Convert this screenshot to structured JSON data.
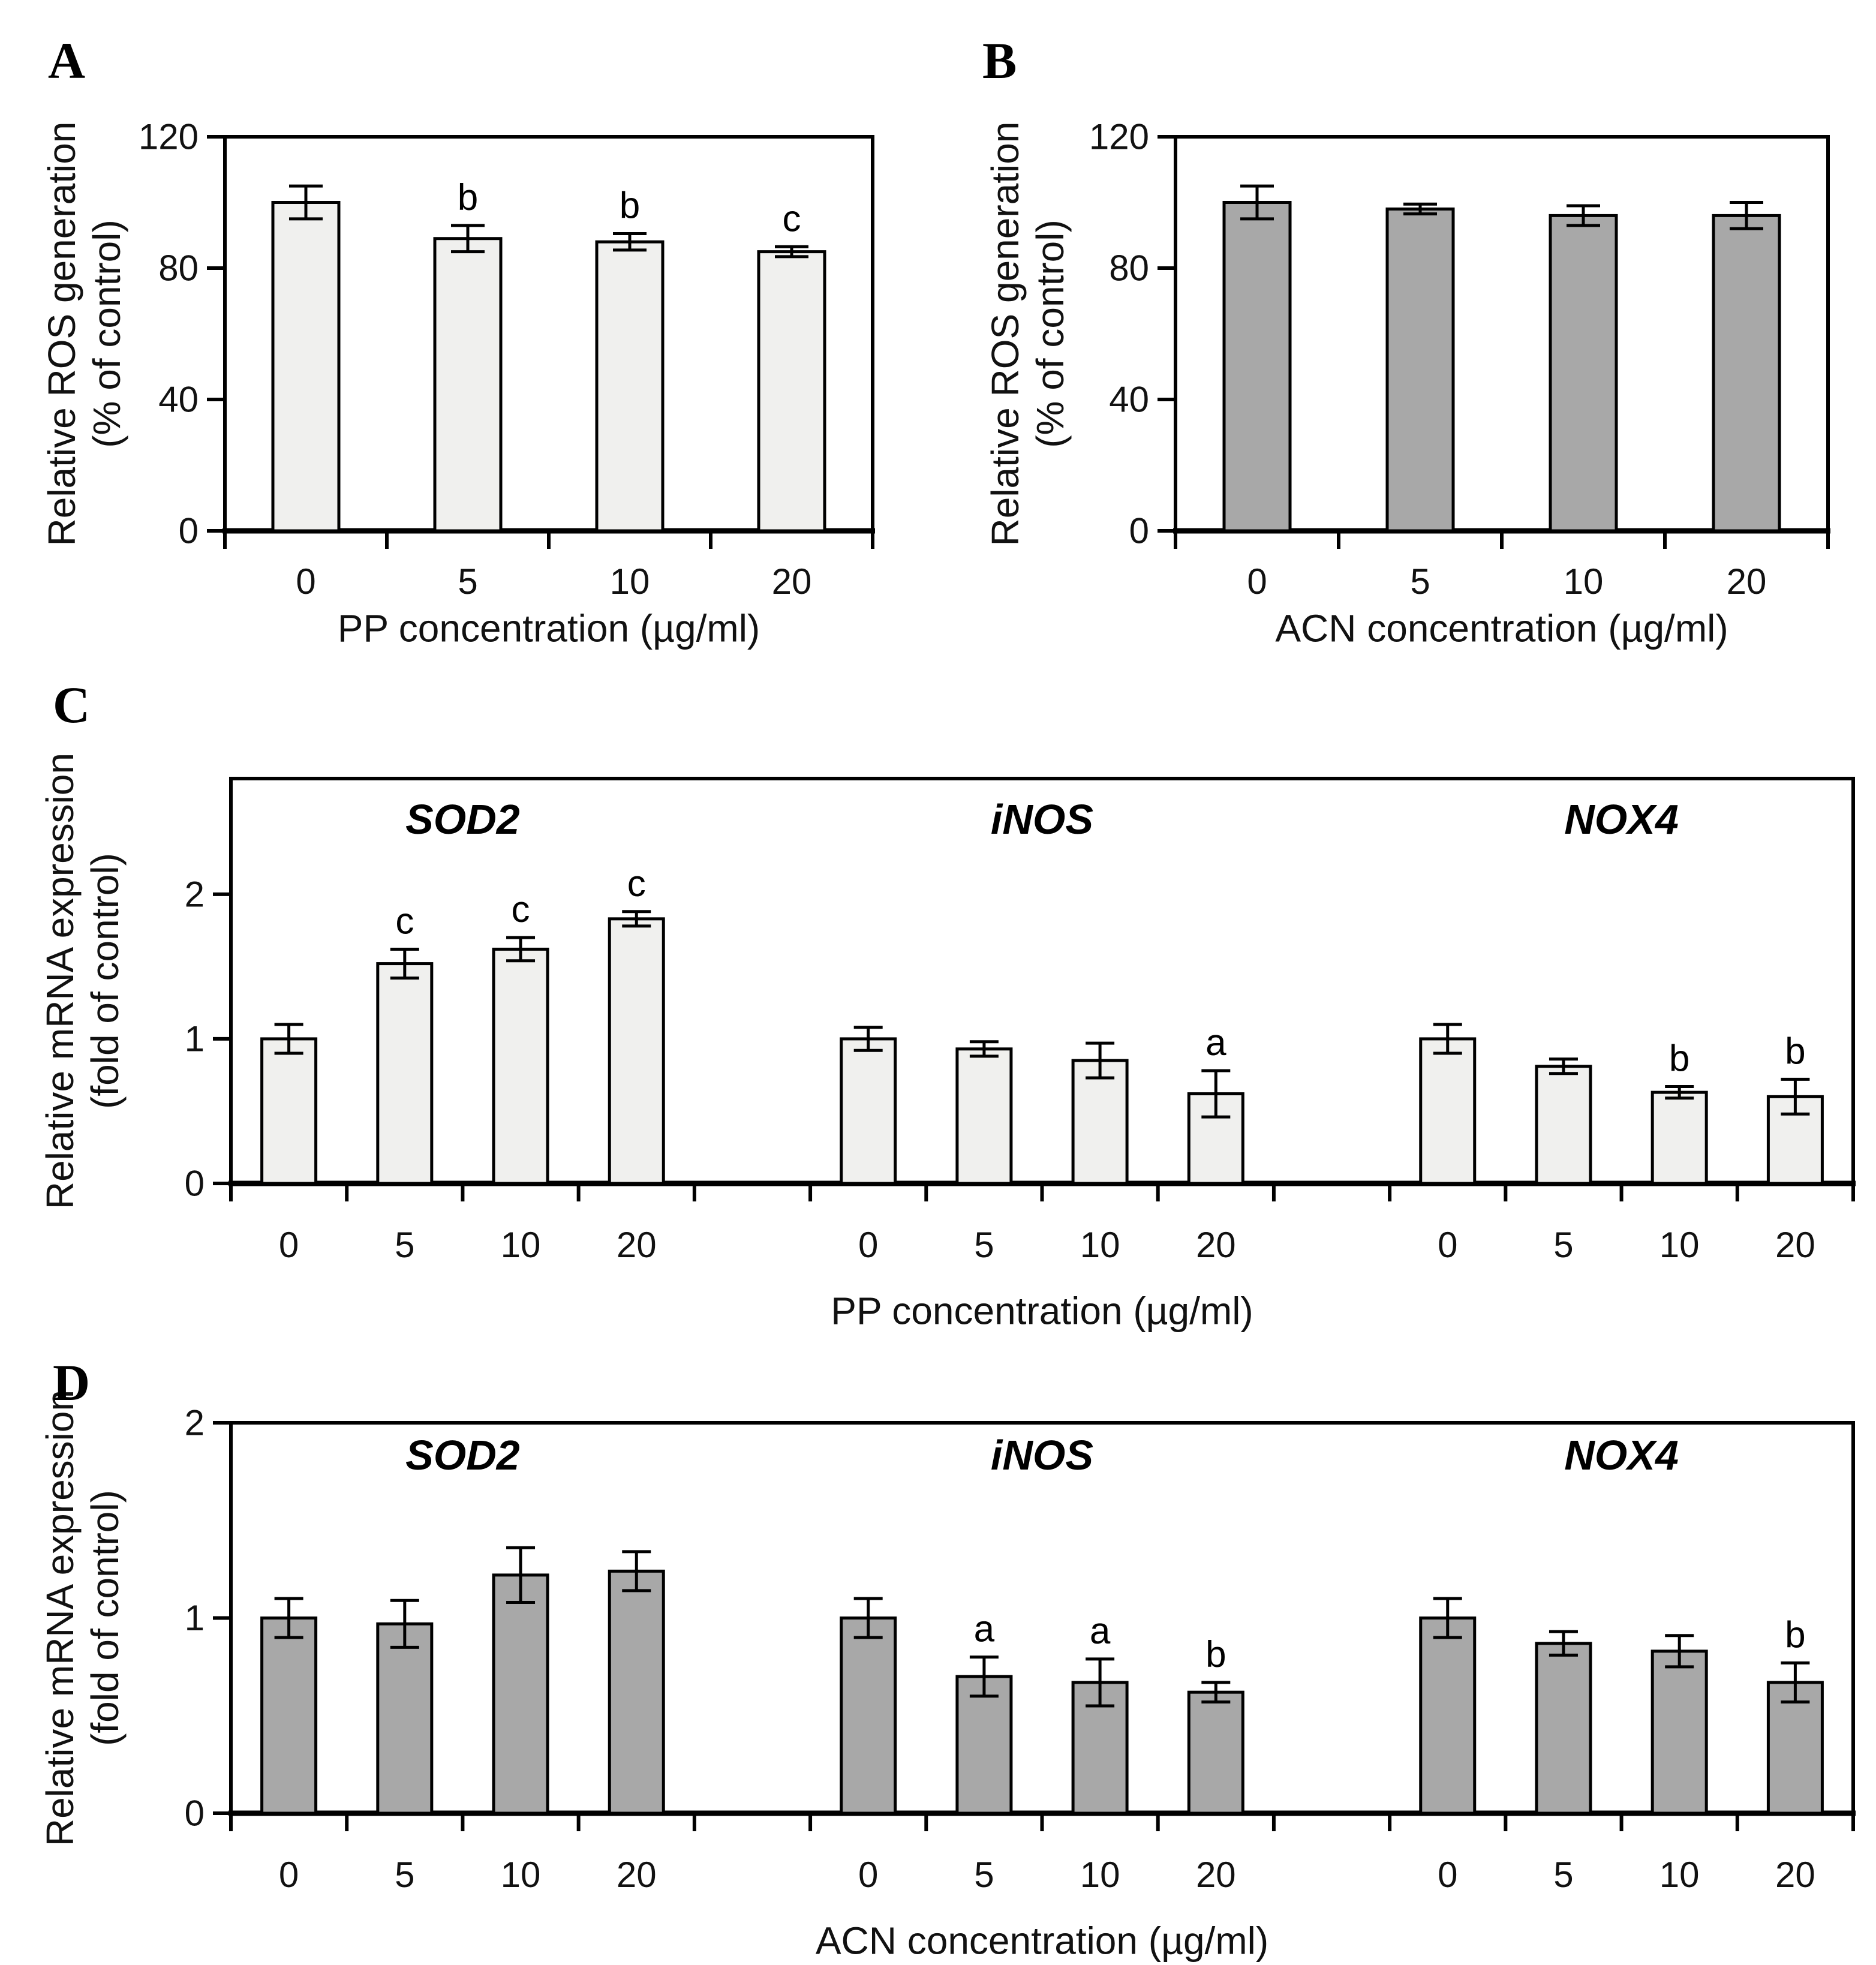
{
  "colors": {
    "light_bar": "#f0f0ee",
    "dark_bar": "#a8a8a8",
    "axis": "#000000",
    "text": "#111111"
  },
  "chart_data": [
    {
      "type": "bar",
      "panel_letter": "A",
      "title": "",
      "categories": [
        "0",
        "5",
        "10",
        "20"
      ],
      "values": [
        100,
        89,
        88,
        85
      ],
      "errors": [
        5,
        4,
        2.5,
        1.5
      ],
      "sig_letters": [
        "",
        "b",
        "b",
        "c"
      ],
      "xlabel": "PP concentration (µg/ml)",
      "ylabel_line1": "Relative ROS generation",
      "ylabel_line2": "(% of control)",
      "yticks": [
        0,
        40,
        80,
        120
      ],
      "ylim": [
        0,
        120
      ],
      "bar_style": "light",
      "grid": false,
      "legend": "none"
    },
    {
      "type": "bar",
      "panel_letter": "B",
      "title": "",
      "categories": [
        "0",
        "5",
        "10",
        "20"
      ],
      "values": [
        100,
        98,
        96,
        96
      ],
      "errors": [
        5,
        1.5,
        3,
        4
      ],
      "sig_letters": [
        "",
        "",
        "",
        ""
      ],
      "xlabel": "ACN concentration (µg/ml)",
      "ylabel_line1": "Relative ROS generation",
      "ylabel_line2": "(% of control)",
      "yticks": [
        0,
        40,
        80,
        120
      ],
      "ylim": [
        0,
        120
      ],
      "bar_style": "dark",
      "grid": false,
      "legend": "none"
    },
    {
      "type": "grouped-bar",
      "panel_letter": "C",
      "title": "",
      "categories": [
        "0",
        "5",
        "10",
        "20"
      ],
      "groups": [
        {
          "name": "SOD2",
          "values": [
            1.0,
            1.52,
            1.62,
            1.83
          ],
          "errors": [
            0.1,
            0.1,
            0.08,
            0.05
          ],
          "sig_letters": [
            "",
            "c",
            "c",
            "c"
          ]
        },
        {
          "name": "iNOS",
          "values": [
            1.0,
            0.93,
            0.85,
            0.62
          ],
          "errors": [
            0.08,
            0.05,
            0.12,
            0.16
          ],
          "sig_letters": [
            "",
            "",
            "",
            "a"
          ]
        },
        {
          "name": "NOX4",
          "values": [
            1.0,
            0.81,
            0.63,
            0.6
          ],
          "errors": [
            0.1,
            0.05,
            0.04,
            0.12
          ],
          "sig_letters": [
            "",
            "",
            "b",
            "b"
          ]
        }
      ],
      "xlabel": "PP concentration (µg/ml)",
      "ylabel_line1": "Relative mRNA expression",
      "ylabel_line2": "(fold of control)",
      "yticks": [
        0,
        1,
        2
      ],
      "ylim": [
        0,
        2.8
      ],
      "bar_style": "light",
      "grid": false,
      "legend": "none"
    },
    {
      "type": "grouped-bar",
      "panel_letter": "D",
      "title": "",
      "categories": [
        "0",
        "5",
        "10",
        "20"
      ],
      "groups": [
        {
          "name": "SOD2",
          "values": [
            1.0,
            0.97,
            1.22,
            1.24
          ],
          "errors": [
            0.1,
            0.12,
            0.14,
            0.1
          ],
          "sig_letters": [
            "",
            "",
            "",
            ""
          ]
        },
        {
          "name": "iNOS",
          "values": [
            1.0,
            0.7,
            0.67,
            0.62
          ],
          "errors": [
            0.1,
            0.1,
            0.12,
            0.05
          ],
          "sig_letters": [
            "",
            "a",
            "a",
            "b"
          ]
        },
        {
          "name": "NOX4",
          "values": [
            1.0,
            0.87,
            0.83,
            0.67
          ],
          "errors": [
            0.1,
            0.06,
            0.08,
            0.1
          ],
          "sig_letters": [
            "",
            "",
            "",
            "b"
          ]
        }
      ],
      "xlabel": "ACN concentration (µg/ml)",
      "ylabel_line1": "Relative mRNA expression",
      "ylabel_line2": "(fold of control)",
      "yticks": [
        0,
        1,
        2
      ],
      "ylim": [
        0,
        2
      ],
      "bar_style": "dark",
      "grid": false,
      "legend": "none"
    }
  ]
}
